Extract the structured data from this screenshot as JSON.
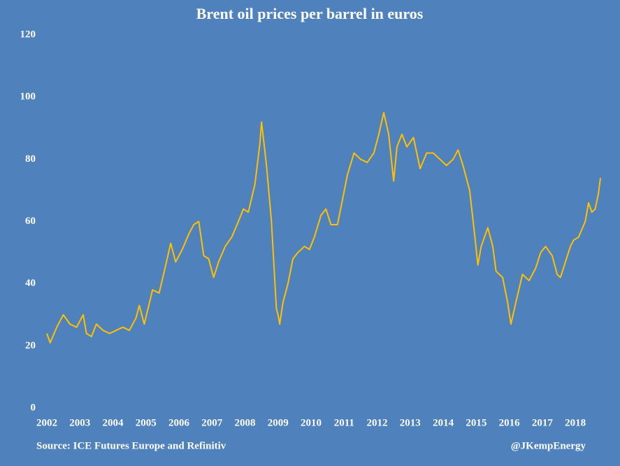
{
  "chart_data": {
    "type": "line",
    "title": "Brent oil prices per barrel in euros",
    "source": "Source: ICE Futures Europe and Refinitiv",
    "credit": "@JKempEnergy",
    "xlim": [
      2002,
      2018.76
    ],
    "xticks": [
      2002,
      2003,
      2004,
      2005,
      2006,
      2007,
      2008,
      2009,
      2010,
      2011,
      2012,
      2013,
      2014,
      2015,
      2016,
      2017,
      2018
    ],
    "ylim": [
      0,
      120
    ],
    "yticks": [
      0,
      20,
      40,
      60,
      80,
      100,
      120
    ],
    "grid": false,
    "x": [
      2002.0,
      2002.1,
      2002.3,
      2002.5,
      2002.7,
      2002.9,
      2003.1,
      2003.2,
      2003.35,
      2003.5,
      2003.7,
      2003.9,
      2004.1,
      2004.3,
      2004.5,
      2004.7,
      2004.8,
      2004.95,
      2005.2,
      2005.4,
      2005.6,
      2005.75,
      2005.9,
      2006.1,
      2006.3,
      2006.45,
      2006.6,
      2006.75,
      2006.9,
      2007.05,
      2007.2,
      2007.4,
      2007.6,
      2007.8,
      2007.95,
      2008.1,
      2008.3,
      2008.45,
      2008.5,
      2008.65,
      2008.8,
      2008.95,
      2009.0,
      2009.05,
      2009.15,
      2009.3,
      2009.45,
      2009.6,
      2009.8,
      2009.95,
      2010.1,
      2010.3,
      2010.45,
      2010.6,
      2010.8,
      2010.95,
      2011.1,
      2011.3,
      2011.5,
      2011.7,
      2011.9,
      2012.05,
      2012.2,
      2012.35,
      2012.5,
      2012.6,
      2012.75,
      2012.9,
      2013.1,
      2013.3,
      2013.5,
      2013.7,
      2013.9,
      2014.1,
      2014.3,
      2014.45,
      2014.6,
      2014.8,
      2014.95,
      2015.05,
      2015.15,
      2015.35,
      2015.5,
      2015.6,
      2015.8,
      2015.95,
      2016.05,
      2016.2,
      2016.4,
      2016.6,
      2016.8,
      2016.95,
      2017.1,
      2017.3,
      2017.45,
      2017.55,
      2017.7,
      2017.85,
      2017.95,
      2018.1,
      2018.3,
      2018.4,
      2018.5,
      2018.6,
      2018.7,
      2018.76
    ],
    "series": [
      {
        "name": "Brent",
        "color": "#ffc000",
        "values": [
          24,
          21,
          26,
          30,
          27,
          26,
          30,
          24,
          23,
          27,
          25,
          24,
          25,
          26,
          25,
          29,
          33,
          27,
          38,
          37,
          46,
          53,
          47,
          51,
          56,
          59,
          60,
          49,
          48,
          42,
          47,
          52,
          55,
          60,
          64,
          63,
          72,
          85,
          92,
          78,
          60,
          32,
          30,
          27,
          34,
          40,
          48,
          50,
          52,
          51,
          55,
          62,
          64,
          59,
          59,
          67,
          75,
          82,
          80,
          79,
          82,
          88,
          95,
          88,
          73,
          84,
          88,
          84,
          87,
          77,
          82,
          82,
          80,
          78,
          80,
          83,
          78,
          70,
          56,
          46,
          52,
          58,
          52,
          44,
          42,
          34,
          27,
          34,
          43,
          41,
          45,
          50,
          52,
          49,
          43,
          42,
          47,
          52,
          54,
          55,
          60,
          66,
          63,
          64,
          69,
          74
        ]
      }
    ]
  }
}
